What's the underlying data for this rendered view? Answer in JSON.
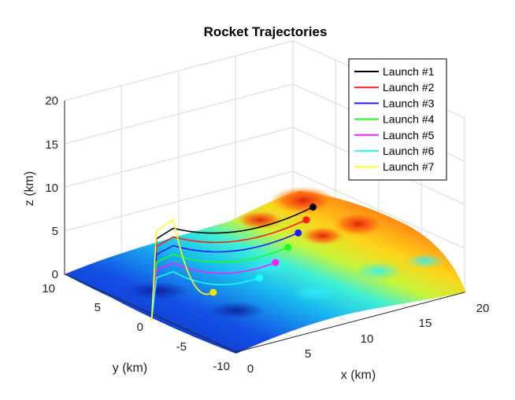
{
  "chart_data": {
    "type": "3d-line-surface",
    "title": "Rocket Trajectories",
    "xlabel": "x (km)",
    "ylabel": "y (km)",
    "zlabel": "z (km)",
    "xlim": [
      0,
      20
    ],
    "ylim": [
      -10,
      10
    ],
    "zlim": [
      0,
      20
    ],
    "xticks": [
      0,
      5,
      10,
      15,
      20
    ],
    "yticks": [
      -10,
      -5,
      0,
      5,
      10
    ],
    "zticks": [
      0,
      5,
      10,
      15,
      20
    ],
    "grid": true,
    "legend": "top-right",
    "series": [
      {
        "name": "Launch #1",
        "color": "#000000",
        "apex": [
          0.5,
          -2,
          10.5
        ],
        "end": [
          16.5,
          3,
          5.2
        ],
        "impact": [
          16.5,
          3,
          5.2
        ]
      },
      {
        "name": "Launch #2",
        "color": "#ff1a1a",
        "apex": [
          0.5,
          -2,
          9.5
        ],
        "end": [
          15.3,
          2.2,
          4.5
        ],
        "impact": [
          15.3,
          2.2,
          4.5
        ]
      },
      {
        "name": "Launch #3",
        "color": "#1a1aff",
        "apex": [
          0.5,
          -2,
          8.5
        ],
        "end": [
          14,
          1.4,
          3.8
        ],
        "impact": [
          14,
          1.4,
          3.8
        ]
      },
      {
        "name": "Launch #4",
        "color": "#1aff1a",
        "apex": [
          0.5,
          -2,
          7.5
        ],
        "end": [
          12.5,
          0.6,
          3.0
        ],
        "impact": [
          12.5,
          0.6,
          3.0
        ]
      },
      {
        "name": "Launch #5",
        "color": "#ff1aff",
        "apex": [
          0.5,
          -2,
          6.5
        ],
        "end": [
          10.8,
          -0.2,
          2.2
        ],
        "impact": [
          10.8,
          -0.2,
          2.2
        ]
      },
      {
        "name": "Launch #6",
        "color": "#1affff",
        "apex": [
          0.5,
          -2,
          5.5
        ],
        "end": [
          8.8,
          -1.0,
          1.5
        ],
        "impact": [
          8.8,
          -1.0,
          1.5
        ]
      },
      {
        "name": "Launch #7",
        "color": "#ffff1a",
        "apex": [
          0.5,
          -2,
          11.5
        ],
        "end": [
          5.5,
          0,
          0.5
        ],
        "impact": [
          5.5,
          0,
          0.5
        ]
      }
    ]
  }
}
